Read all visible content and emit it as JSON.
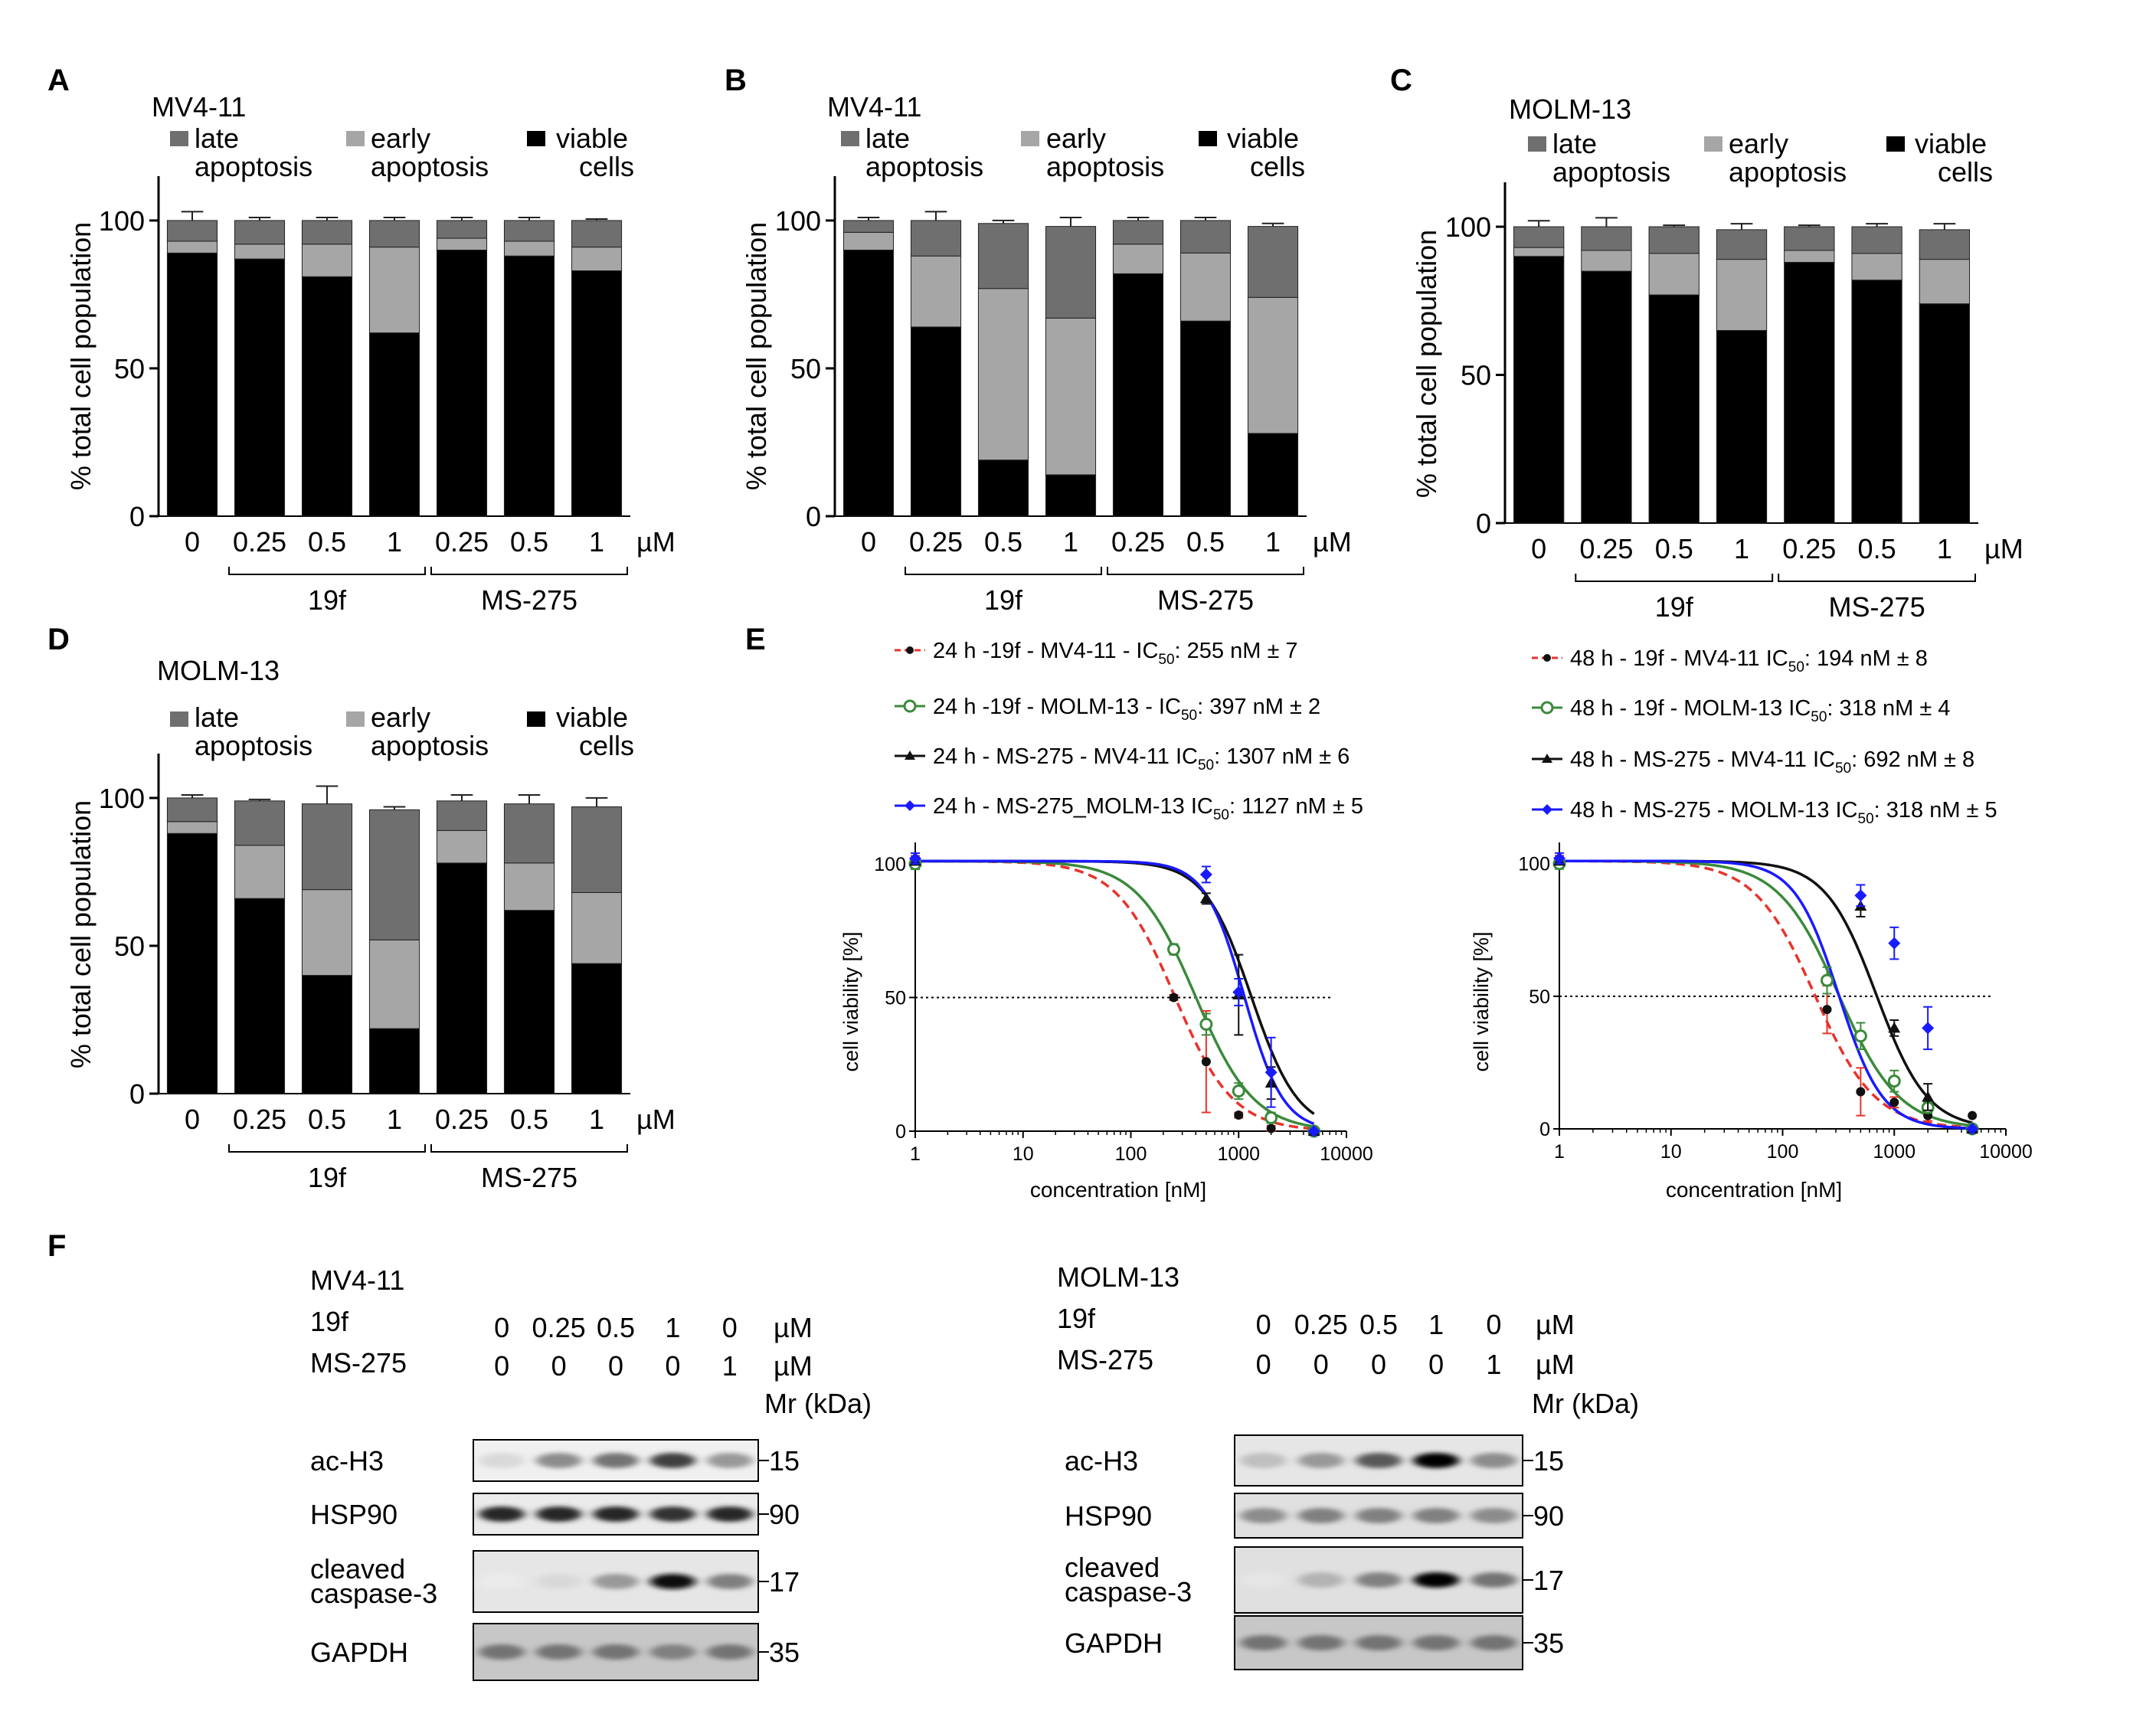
{
  "chart_data": [
    {
      "panel": "A",
      "type": "bar",
      "stacked": true,
      "title": "MV4-11",
      "legend": [
        {
          "line1": "late",
          "line2": "apoptosis",
          "color": "#6f6f6f"
        },
        {
          "line1": "early",
          "line2": "apoptosis",
          "color": "#a6a6a6"
        },
        {
          "line1": "viable",
          "line2": "cells",
          "color": "#000000"
        }
      ],
      "ylabel": "% total cell population",
      "ylim": [
        0,
        115
      ],
      "yticks": [
        0,
        50,
        100
      ],
      "categories": [
        "0",
        "0.25",
        "0.5",
        "1",
        "0.25",
        "0.5",
        "1"
      ],
      "unit": "µM",
      "groups": [
        {
          "label": "19f",
          "from": 1,
          "to": 3
        },
        {
          "label": "MS-275",
          "from": 4,
          "to": 6
        }
      ],
      "series": [
        {
          "name": "viable cells",
          "color": "#000000",
          "values": [
            89,
            87,
            81,
            62,
            90,
            88,
            83
          ],
          "err": [
            1,
            1,
            1,
            2,
            1,
            1,
            1
          ]
        },
        {
          "name": "early apoptosis",
          "color": "#a6a6a6",
          "values": [
            4,
            5,
            11,
            29,
            4,
            5,
            8
          ],
          "err": [
            1,
            1,
            1,
            1,
            1,
            1,
            1
          ]
        },
        {
          "name": "late apoptosis",
          "color": "#6f6f6f",
          "values": [
            7,
            8,
            8,
            9,
            6,
            7,
            9
          ],
          "err": [
            3,
            1,
            1,
            1,
            1,
            1,
            0.5
          ]
        }
      ]
    },
    {
      "panel": "B",
      "type": "bar",
      "stacked": true,
      "title": "MV4-11",
      "legend": [
        {
          "line1": "late",
          "line2": "apoptosis",
          "color": "#6f6f6f"
        },
        {
          "line1": "early",
          "line2": "apoptosis",
          "color": "#a6a6a6"
        },
        {
          "line1": "viable",
          "line2": "cells",
          "color": "#000000"
        }
      ],
      "ylabel": "% total cell population",
      "ylim": [
        0,
        115
      ],
      "yticks": [
        0,
        50,
        100
      ],
      "categories": [
        "0",
        "0.25",
        "0.5",
        "1",
        "0.25",
        "0.5",
        "1"
      ],
      "unit": "µM",
      "groups": [
        {
          "label": "19f",
          "from": 1,
          "to": 3
        },
        {
          "label": "MS-275",
          "from": 4,
          "to": 6
        }
      ],
      "series": [
        {
          "name": "viable cells",
          "color": "#000000",
          "values": [
            90,
            64,
            19,
            14,
            82,
            66,
            28
          ],
          "err": [
            1,
            7,
            1,
            2,
            2,
            1,
            2
          ]
        },
        {
          "name": "early apoptosis",
          "color": "#a6a6a6",
          "values": [
            6,
            24,
            58,
            53,
            10,
            23,
            46
          ],
          "err": [
            1,
            4,
            2,
            1,
            1,
            1,
            4
          ]
        },
        {
          "name": "late apoptosis",
          "color": "#6f6f6f",
          "values": [
            4,
            12,
            22,
            31,
            8,
            11,
            24
          ],
          "err": [
            1,
            3,
            1,
            3,
            1,
            1,
            1
          ]
        }
      ]
    },
    {
      "panel": "C",
      "type": "bar",
      "stacked": true,
      "title": "MOLM-13",
      "legend": [
        {
          "line1": "late",
          "line2": "apoptosis",
          "color": "#6f6f6f"
        },
        {
          "line1": "early",
          "line2": "apoptosis",
          "color": "#a6a6a6"
        },
        {
          "line1": "viable",
          "line2": "cells",
          "color": "#000000"
        }
      ],
      "ylabel": "% total cell population",
      "ylim": [
        0,
        115
      ],
      "yticks": [
        0,
        50,
        100
      ],
      "categories": [
        "0",
        "0.25",
        "0.5",
        "1",
        "0.25",
        "0.5",
        "1"
      ],
      "unit": "µM",
      "groups": [
        {
          "label": "19f",
          "from": 1,
          "to": 3
        },
        {
          "label": "MS-275",
          "from": 4,
          "to": 6
        }
      ],
      "series": [
        {
          "name": "viable cells",
          "color": "#000000",
          "values": [
            90,
            85,
            77,
            65,
            88,
            82,
            74
          ],
          "err": [
            1,
            2,
            1,
            1,
            1,
            1,
            2
          ]
        },
        {
          "name": "early apoptosis",
          "color": "#a6a6a6",
          "values": [
            3,
            7,
            14,
            24,
            4,
            9,
            15
          ],
          "err": [
            1,
            2,
            1,
            2,
            1,
            1,
            1
          ]
        },
        {
          "name": "late apoptosis",
          "color": "#6f6f6f",
          "values": [
            7,
            8,
            9,
            10,
            8,
            9,
            10
          ],
          "err": [
            2,
            3,
            0.5,
            2,
            0.5,
            1,
            2
          ]
        }
      ]
    },
    {
      "panel": "D",
      "type": "bar",
      "stacked": true,
      "title": "MOLM-13",
      "legend": [
        {
          "line1": "late",
          "line2": "apoptosis",
          "color": "#6f6f6f"
        },
        {
          "line1": "early",
          "line2": "apoptosis",
          "color": "#a6a6a6"
        },
        {
          "line1": "viable",
          "line2": "cells",
          "color": "#000000"
        }
      ],
      "ylabel": "% total cell population",
      "ylim": [
        0,
        115
      ],
      "yticks": [
        0,
        50,
        100
      ],
      "categories": [
        "0",
        "0.25",
        "0.5",
        "1",
        "0.25",
        "0.5",
        "1"
      ],
      "unit": "µM",
      "groups": [
        {
          "label": "19f",
          "from": 1,
          "to": 3
        },
        {
          "label": "MS-275",
          "from": 4,
          "to": 6
        }
      ],
      "series": [
        {
          "name": "viable cells",
          "color": "#000000",
          "values": [
            88,
            66,
            40,
            22,
            78,
            62,
            44
          ],
          "err": [
            2,
            3,
            11,
            3,
            2,
            3,
            6
          ]
        },
        {
          "name": "early apoptosis",
          "color": "#a6a6a6",
          "values": [
            4,
            18,
            29,
            30,
            11,
            16,
            24
          ],
          "err": [
            2,
            4,
            6,
            7,
            3,
            6,
            5
          ]
        },
        {
          "name": "late apoptosis",
          "color": "#6f6f6f",
          "values": [
            8,
            15,
            29,
            44,
            10,
            20,
            29
          ],
          "err": [
            1,
            0.5,
            6,
            1,
            2,
            3,
            3
          ]
        }
      ]
    },
    {
      "panel": "E-left",
      "type": "line",
      "xscale": "log",
      "xlabel": "concentration [nM]",
      "ylabel": "cell viability [%]",
      "xlim": [
        1,
        10000
      ],
      "ylim": [
        0,
        108
      ],
      "xticks": [
        1,
        10,
        100,
        1000,
        10000
      ],
      "yticks": [
        0,
        50,
        100
      ],
      "reference_line": 50,
      "series": [
        {
          "name": "24 h -19f - MV4-11 - IC",
          "ic50": ": 255 nM ± 7",
          "color": "#e8332b",
          "dashed": true,
          "marker": "circle",
          "ic": 255,
          "hill": 1.6,
          "x": [
            1,
            250,
            500,
            1000,
            2000,
            5000
          ],
          "y": [
            101,
            50,
            26,
            6,
            1,
            0
          ],
          "err": [
            2,
            1,
            19,
            1,
            1,
            0
          ]
        },
        {
          "name": "24 h -19f - MOLM-13 - IC",
          "ic50": ": 397 nM ± 2",
          "color": "#3a8a3a",
          "dashed": false,
          "marker": "open-circle",
          "ic": 397,
          "hill": 1.6,
          "x": [
            1,
            250,
            500,
            1000,
            2000,
            5000
          ],
          "y": [
            100,
            68,
            40,
            15,
            5,
            0
          ],
          "err": [
            2,
            2,
            4,
            3,
            2,
            0
          ]
        },
        {
          "name": "24 h - MS-275 - MV4-11 IC",
          "ic50": ": 1307 nM ± 6",
          "color": "#111111",
          "dashed": false,
          "marker": "triangle",
          "ic": 1307,
          "hill": 2.0,
          "x": [
            1,
            500,
            1000,
            2000,
            5000
          ],
          "y": [
            101,
            87,
            51,
            18,
            0
          ],
          "err": [
            1,
            2,
            15,
            6,
            0
          ]
        },
        {
          "name": "24 h - MS-275_MOLM-13 IC",
          "ic50": ": 1127 nM ± 5",
          "color": "#1a1aff",
          "dashed": false,
          "marker": "diamond",
          "ic": 1127,
          "hill": 2.4,
          "x": [
            1,
            500,
            1000,
            2000,
            5000
          ],
          "y": [
            102,
            96,
            52,
            22,
            0
          ],
          "err": [
            2,
            3,
            5,
            13,
            0
          ]
        }
      ]
    },
    {
      "panel": "E-right",
      "type": "line",
      "xscale": "log",
      "xlabel": "concentration [nM]",
      "ylabel": "cell viability [%]",
      "xlim": [
        1,
        10000
      ],
      "ylim": [
        0,
        108
      ],
      "xticks": [
        1,
        10,
        100,
        1000,
        10000
      ],
      "yticks": [
        0,
        50,
        100
      ],
      "reference_line": 50,
      "series": [
        {
          "name": "48 h - 19f - MV4-11 IC",
          "ic50": ": 194 nM ± 8",
          "color": "#e8332b",
          "dashed": true,
          "marker": "circle",
          "ic": 194,
          "hill": 1.6,
          "x": [
            1,
            250,
            500,
            1000,
            2000,
            5000
          ],
          "y": [
            101,
            45,
            14,
            10,
            5,
            5
          ],
          "err": [
            2,
            9,
            9,
            2,
            2,
            0
          ]
        },
        {
          "name": "48 h - 19f - MOLM-13 IC",
          "ic50": ": 318 nM ± 4",
          "color": "#3a8a3a",
          "dashed": false,
          "marker": "open-circle",
          "ic": 318,
          "hill": 1.6,
          "x": [
            1,
            250,
            500,
            1000,
            2000,
            5000
          ],
          "y": [
            100,
            56,
            35,
            18,
            8,
            0
          ],
          "err": [
            2,
            5,
            5,
            4,
            2,
            0
          ]
        },
        {
          "name": "48 h - MS-275 - MV4-11 IC",
          "ic50": ": 692 nM ± 8",
          "color": "#111111",
          "dashed": false,
          "marker": "triangle",
          "ic": 692,
          "hill": 1.9,
          "x": [
            1,
            500,
            1000,
            2000,
            5000
          ],
          "y": [
            101,
            84,
            38,
            12,
            0
          ],
          "err": [
            1,
            4,
            3,
            5,
            0
          ]
        },
        {
          "name": "48 h - MS-275 - MOLM-13 IC",
          "ic50": ": 318 nM ± 5",
          "color": "#1a1aff",
          "dashed": false,
          "marker": "diamond",
          "ic": 318,
          "hill": 2.2,
          "x": [
            1,
            500,
            1000,
            2000,
            5000
          ],
          "y": [
            102,
            88,
            70,
            38,
            0
          ],
          "err": [
            2,
            4,
            6,
            8,
            0
          ]
        }
      ]
    }
  ],
  "panel_letters": [
    "A",
    "B",
    "C",
    "D",
    "E",
    "F"
  ],
  "ic_subscript": "50",
  "blots": [
    {
      "cell_line": "MV4-11",
      "row1_label": "19f",
      "row1_values": [
        "0",
        "0.25",
        "0.5",
        "1",
        "0"
      ],
      "row1_unit": "µM",
      "row2_label": "MS-275",
      "row2_values": [
        "0",
        "0",
        "0",
        "0",
        "1"
      ],
      "row2_unit": "µM",
      "mr_label": "Mr (kDa)",
      "bands": [
        {
          "label1": "ac-H3",
          "label2": "",
          "kda": "15",
          "intensity": [
            0.15,
            0.45,
            0.55,
            0.75,
            0.4
          ],
          "bg": 0.06
        },
        {
          "label1": "HSP90",
          "label2": "",
          "kda": "90",
          "intensity": [
            0.85,
            0.85,
            0.85,
            0.8,
            0.85
          ],
          "bg": 0.08
        },
        {
          "label1": "cleaved",
          "label2": "caspase-3",
          "kda": "17",
          "intensity": [
            0.08,
            0.15,
            0.4,
            0.95,
            0.5
          ],
          "bg": 0.1
        },
        {
          "label1": "GAPDH",
          "label2": "",
          "kda": "35",
          "intensity": [
            0.55,
            0.55,
            0.55,
            0.5,
            0.55
          ],
          "bg": 0.22
        }
      ]
    },
    {
      "cell_line": "MOLM-13",
      "row1_label": "19f",
      "row1_values": [
        "0",
        "0.25",
        "0.5",
        "1",
        "0"
      ],
      "row1_unit": "µM",
      "row2_label": "MS-275",
      "row2_values": [
        "0",
        "0",
        "0",
        "0",
        "1"
      ],
      "row2_unit": "µM",
      "mr_label": "Mr (kDa)",
      "bands": [
        {
          "label1": "ac-H3",
          "label2": "",
          "kda": "15",
          "intensity": [
            0.25,
            0.4,
            0.65,
            1.0,
            0.45
          ],
          "bg": 0.1
        },
        {
          "label1": "HSP90",
          "label2": "",
          "kda": "90",
          "intensity": [
            0.45,
            0.5,
            0.5,
            0.5,
            0.45
          ],
          "bg": 0.12
        },
        {
          "label1": "cleaved",
          "label2": "caspase-3",
          "kda": "17",
          "intensity": [
            0.1,
            0.3,
            0.5,
            1.0,
            0.55
          ],
          "bg": 0.12
        },
        {
          "label1": "GAPDH",
          "label2": "",
          "kda": "35",
          "intensity": [
            0.55,
            0.55,
            0.55,
            0.55,
            0.55
          ],
          "bg": 0.22
        }
      ]
    }
  ]
}
